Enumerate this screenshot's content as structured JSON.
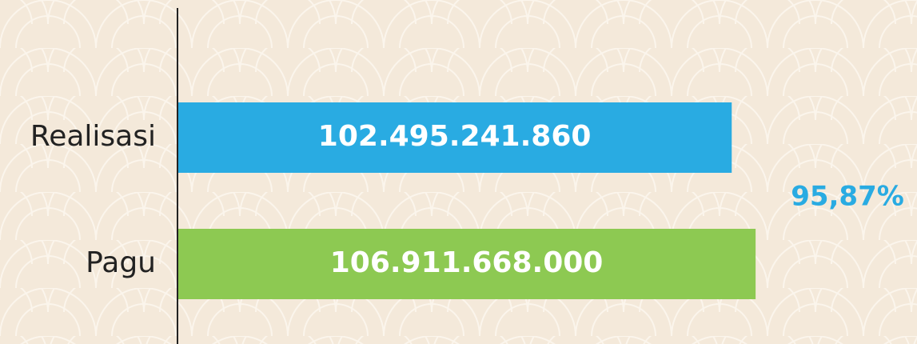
{
  "chart_data": {
    "type": "hbar",
    "categories": [
      "Realisasi",
      "Pagu"
    ],
    "values": [
      102495241860,
      106911668000
    ],
    "value_labels": [
      "102.495.241.860",
      "106.911.668.000"
    ],
    "colors": [
      "#29abe2",
      "#8dc952"
    ],
    "xlim": [
      0,
      110000000000
    ],
    "annotation": "95,87%"
  }
}
